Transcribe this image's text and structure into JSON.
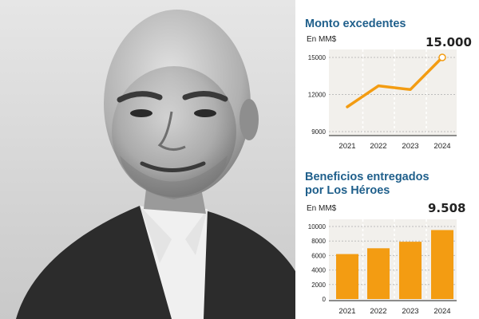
{
  "chart_data": [
    {
      "type": "line",
      "title": "Monto excedentes",
      "subtitle": "En MM$",
      "categories": [
        "2021",
        "2022",
        "2023",
        "2024"
      ],
      "values": [
        11000,
        12700,
        12400,
        15000
      ],
      "yticks": [
        "9000",
        "12000",
        "15000"
      ],
      "ylim": [
        9000,
        15000
      ],
      "callout": "15.000",
      "color": "#f39c12",
      "grid": true
    },
    {
      "type": "bar",
      "title": "Beneficios entregados\npor Los Héroes",
      "subtitle": "En MM$",
      "categories": [
        "2021",
        "2022",
        "2023",
        "2024"
      ],
      "values": [
        6200,
        7000,
        7900,
        9508
      ],
      "yticks": [
        "0",
        "2000",
        "4000",
        "6000",
        "8000",
        "10000"
      ],
      "ylim": [
        0,
        10000
      ],
      "callout": "9.508",
      "color": "#f39c12",
      "grid": true
    }
  ]
}
